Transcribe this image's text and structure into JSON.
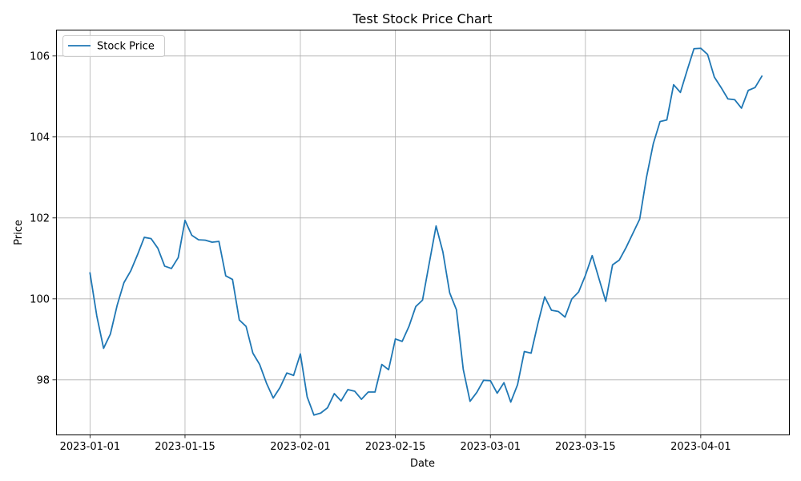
{
  "chart_data": {
    "type": "line",
    "title": "Test Stock Price Chart",
    "xlabel": "Date",
    "ylabel": "Price",
    "x_tick_labels": [
      "2023-01-01",
      "2023-01-15",
      "2023-02-01",
      "2023-02-15",
      "2023-03-01",
      "2023-03-15",
      "2023-04-01"
    ],
    "y_tick_labels": [
      "98",
      "100",
      "102",
      "104",
      "106"
    ],
    "ylim": [
      96.65,
      106.65
    ],
    "xlim": [
      "2022-12-27",
      "2023-04-14"
    ],
    "grid": true,
    "legend": "top-left",
    "line_color": "#1f77b4",
    "series": [
      {
        "name": "Stock Price",
        "start_date": "2023-01-01",
        "values": [
          100.64,
          99.58,
          98.78,
          99.13,
          99.84,
          100.4,
          100.69,
          101.09,
          101.52,
          101.49,
          101.25,
          100.81,
          100.75,
          101.02,
          101.94,
          101.57,
          101.46,
          101.45,
          101.4,
          101.42,
          100.57,
          100.48,
          99.48,
          99.32,
          98.66,
          98.38,
          97.92,
          97.55,
          97.81,
          98.17,
          98.11,
          98.64,
          97.58,
          97.13,
          97.18,
          97.31,
          97.66,
          97.48,
          97.76,
          97.72,
          97.52,
          97.7,
          97.7,
          98.38,
          98.25,
          99.01,
          98.95,
          99.32,
          99.81,
          99.97,
          100.89,
          101.8,
          101.16,
          100.15,
          99.73,
          98.26,
          97.47,
          97.69,
          97.99,
          97.98,
          97.67,
          97.93,
          97.45,
          97.88,
          98.7,
          98.66,
          99.39,
          100.05,
          99.72,
          99.69,
          99.55,
          100.0,
          100.17,
          100.58,
          101.07,
          100.5,
          99.94,
          100.84,
          100.96,
          101.27,
          101.62,
          101.97,
          103.0,
          103.83,
          104.38,
          104.42,
          105.29,
          105.1,
          105.65,
          106.18,
          106.19,
          106.04,
          105.48,
          105.22,
          104.94,
          104.92,
          104.71,
          105.15,
          105.22,
          105.5
        ]
      }
    ]
  }
}
